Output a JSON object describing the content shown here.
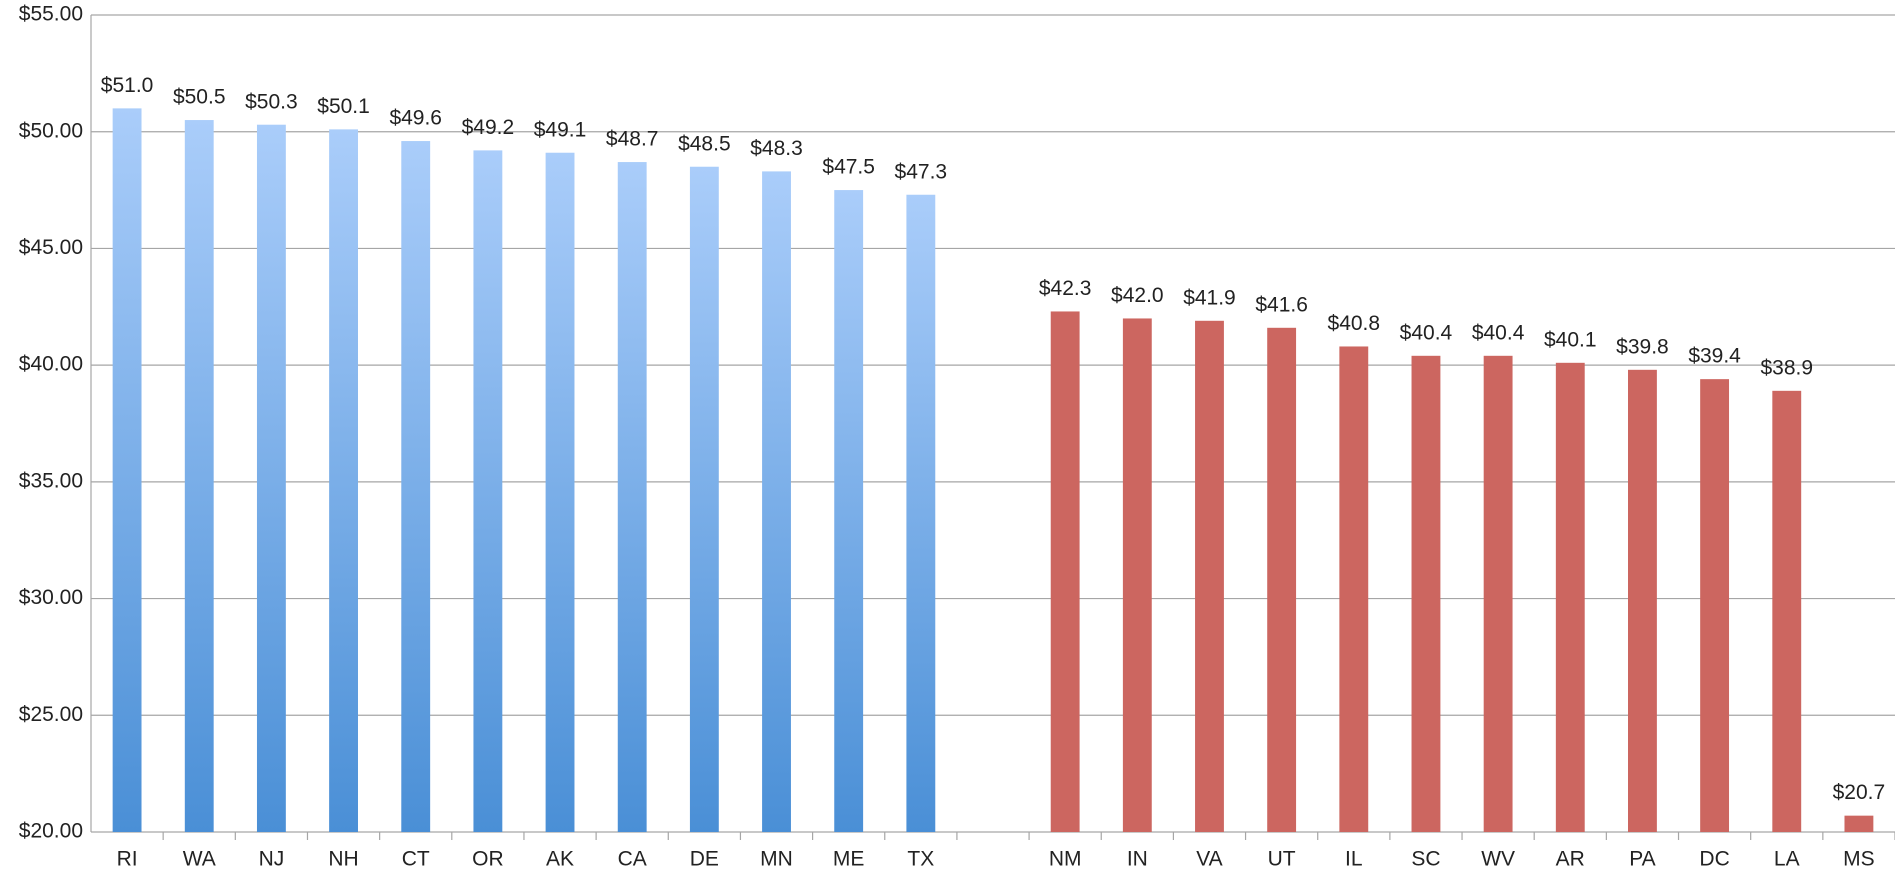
{
  "chart_data": {
    "type": "bar",
    "categories": [
      "RI",
      "WA",
      "NJ",
      "NH",
      "CT",
      "OR",
      "AK",
      "CA",
      "DE",
      "MN",
      "ME",
      "TX",
      null,
      "NM",
      "IN",
      "VA",
      "UT",
      "IL",
      "SC",
      "WV",
      "AR",
      "PA",
      "DC",
      "LA",
      "MS"
    ],
    "values": [
      51.0,
      50.5,
      50.3,
      50.1,
      49.6,
      49.2,
      49.1,
      48.7,
      48.5,
      48.3,
      47.5,
      47.3,
      null,
      42.3,
      42.0,
      41.9,
      41.6,
      40.8,
      40.4,
      40.4,
      40.1,
      39.8,
      39.4,
      38.9,
      20.7
    ],
    "value_labels": [
      "$51.0",
      "$50.5",
      "$50.3",
      "$50.1",
      "$49.6",
      "$49.2",
      "$49.1",
      "$48.7",
      "$48.5",
      "$48.3",
      "$47.5",
      "$47.3",
      null,
      "$42.3",
      "$42.0",
      "$41.9",
      "$41.6",
      "$40.8",
      "$40.4",
      "$40.4",
      "$40.1",
      "$39.8",
      "$39.4",
      "$38.9",
      "$20.7"
    ],
    "colors": [
      "#5b9bde",
      "#5b9bde",
      "#5b9bde",
      "#5b9bde",
      "#5b9bde",
      "#5b9bde",
      "#5b9bde",
      "#5b9bde",
      "#5b9bde",
      "#5b9bde",
      "#5b9bde",
      "#5b9bde",
      null,
      "#cc6660",
      "#cc6660",
      "#cc6660",
      "#cc6660",
      "#cc6660",
      "#cc6660",
      "#cc6660",
      "#cc6660",
      "#cc6660",
      "#cc6660",
      "#cc6660",
      "#cc6660"
    ],
    "ylim": [
      20,
      55
    ],
    "yticks": [
      {
        "value": 20,
        "label": "$20.00"
      },
      {
        "value": 25,
        "label": "$25.00"
      },
      {
        "value": 30,
        "label": "$30.00"
      },
      {
        "value": 35,
        "label": "$35.00"
      },
      {
        "value": 40,
        "label": "$40.00"
      },
      {
        "value": 45,
        "label": "$45.00"
      },
      {
        "value": 50,
        "label": "$50.00"
      },
      {
        "value": 55,
        "label": "$55.00"
      }
    ],
    "grid": true
  }
}
